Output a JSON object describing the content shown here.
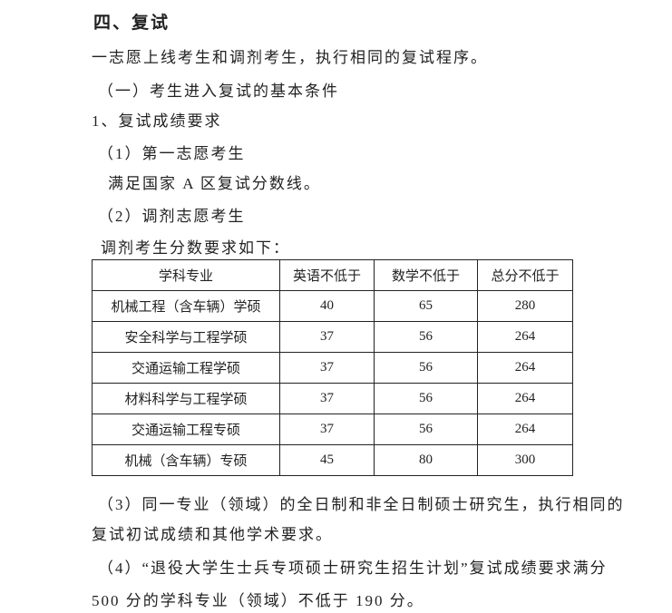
{
  "heading": "四、复试",
  "p1": "一志愿上线考生和调剂考生，执行相同的复试程序。",
  "p2": "（一）考生进入复试的基本条件",
  "p3": "1、复试成绩要求",
  "p4": "（1）第一志愿考生",
  "p5": "满足国家 A 区复试分数线。",
  "p6": "（2）调剂志愿考生",
  "p7": "调剂考生分数要求如下：",
  "table": {
    "headers": [
      "学科专业",
      "英语不低于",
      "数学不低于",
      "总分不低于"
    ],
    "rows": [
      [
        "机械工程（含车辆）学硕",
        "40",
        "65",
        "280"
      ],
      [
        "安全科学与工程学硕",
        "37",
        "56",
        "264"
      ],
      [
        "交通运输工程学硕",
        "37",
        "56",
        "264"
      ],
      [
        "材料科学与工程学硕",
        "37",
        "56",
        "264"
      ],
      [
        "交通运输工程专硕",
        "37",
        "56",
        "264"
      ],
      [
        "机械（含车辆）专硕",
        "45",
        "80",
        "300"
      ]
    ]
  },
  "p8a": "（3）同一专业（领域）的全日制和非全日制硕士研究生，执行相同的",
  "p8b": "复试初试成绩和其他学术要求。",
  "p9a": "（4）“退役大学生士兵专项硕士研究生招生计划”复试成绩要求满分",
  "p9b": "500 分的学科专业（领域）不低于 190 分。"
}
